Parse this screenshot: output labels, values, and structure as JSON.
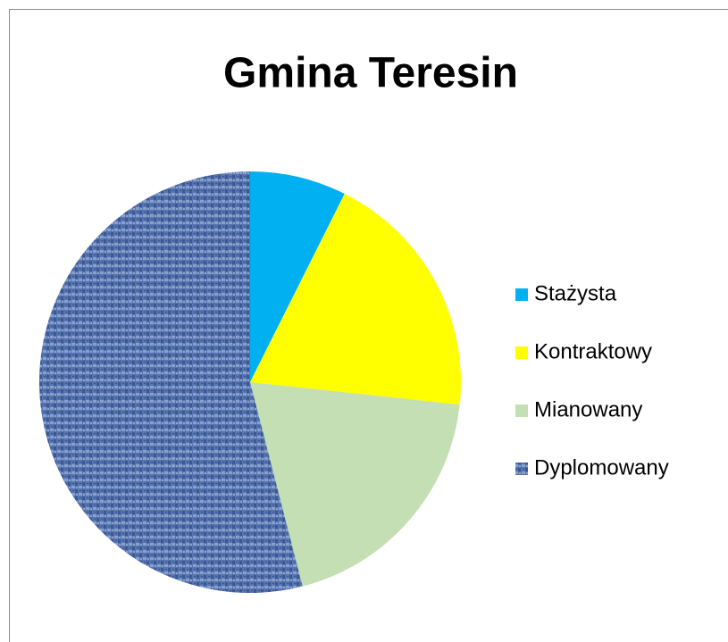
{
  "chart_data": {
    "type": "pie",
    "title": "Gmina Teresin",
    "categories": [
      "Stażysta",
      "Kontraktowy",
      "Mianowany",
      "Dyplomowany"
    ],
    "values": [
      7.4,
      19.3,
      19.3,
      54
    ],
    "colors": [
      "#00b0f0",
      "#ffff00",
      "#c4dfb3",
      "#5674b0"
    ],
    "legend": "right"
  }
}
